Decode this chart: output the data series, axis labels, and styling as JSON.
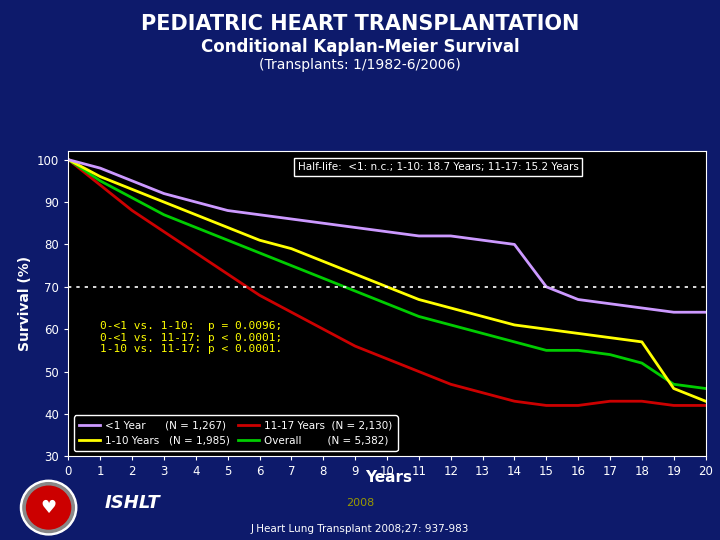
{
  "title1": "PEDIATRIC HEART TRANSPLANTATION",
  "title2": "Conditional Kaplan-Meier Survival",
  "title3": "(Transplants: 1/1982-6/2006)",
  "xlabel": "Years",
  "ylabel": "Survival (%)",
  "bg_color": "#0d1a6b",
  "plot_bg_color": "#000000",
  "xlim": [
    0,
    20
  ],
  "ylim": [
    30,
    102
  ],
  "yticks": [
    30,
    40,
    50,
    60,
    70,
    80,
    90,
    100
  ],
  "xticks": [
    0,
    1,
    2,
    3,
    4,
    5,
    6,
    7,
    8,
    9,
    10,
    11,
    12,
    13,
    14,
    15,
    16,
    17,
    18,
    19,
    20
  ],
  "halflife_text": "Half-life:  <1: n.c.; 1-10: 18.7 Years; 11-17: 15.2 Years",
  "pvalue_text": "0-<1 vs. 1-10:  p = 0.0096;\n0-<1 vs. 11-17: p < 0.0001;\n1-10 vs. 11-17: p < 0.0001.",
  "dotted_line_y": 70,
  "curves": {
    "lt1": {
      "color": "#cc99ff",
      "label": "<1 Year",
      "N": "N = 1,267",
      "x": [
        0,
        1,
        2,
        3,
        4,
        5,
        6,
        7,
        8,
        9,
        10,
        11,
        12,
        13,
        14,
        15,
        16,
        17,
        18,
        19,
        20
      ],
      "y": [
        100,
        98,
        95,
        92,
        90,
        88,
        87,
        86,
        85,
        84,
        83,
        82,
        82,
        81,
        80,
        70,
        67,
        66,
        65,
        64,
        64
      ]
    },
    "yr1_10": {
      "color": "#ffff00",
      "label": "1-10 Years",
      "N": "N = 1,985",
      "x": [
        0,
        1,
        2,
        3,
        4,
        5,
        6,
        7,
        8,
        9,
        10,
        11,
        12,
        13,
        14,
        15,
        16,
        17,
        18,
        19,
        20
      ],
      "y": [
        100,
        96,
        93,
        90,
        87,
        84,
        81,
        79,
        76,
        73,
        70,
        67,
        65,
        63,
        61,
        60,
        59,
        58,
        57,
        46,
        43
      ]
    },
    "yr11_17": {
      "color": "#cc0000",
      "label": "11-17 Years",
      "N": "N = 2,130",
      "x": [
        0,
        1,
        2,
        3,
        4,
        5,
        6,
        7,
        8,
        9,
        10,
        11,
        12,
        13,
        14,
        15,
        16,
        17,
        18,
        19,
        20
      ],
      "y": [
        100,
        94,
        88,
        83,
        78,
        73,
        68,
        64,
        60,
        56,
        53,
        50,
        47,
        45,
        43,
        42,
        42,
        43,
        43,
        42,
        42
      ]
    },
    "overall": {
      "color": "#00cc00",
      "label": "Overall",
      "N": "N = 5,382",
      "x": [
        0,
        1,
        2,
        3,
        4,
        5,
        6,
        7,
        8,
        9,
        10,
        11,
        12,
        13,
        14,
        15,
        16,
        17,
        18,
        19,
        20
      ],
      "y": [
        100,
        95,
        91,
        87,
        84,
        81,
        78,
        75,
        72,
        69,
        66,
        63,
        61,
        59,
        57,
        55,
        55,
        54,
        52,
        47,
        46
      ]
    }
  },
  "ishlt_text": "ISHLT",
  "year_text": "2008",
  "citation": "J Heart Lung Transplant 2008;27: 937-983",
  "title1_color": "#ffffff",
  "title2_color": "#ffffff",
  "title3_color": "#ffffff",
  "axis_label_color": "#ffffff",
  "tick_label_color": "#ffffff",
  "halflife_box_color": "#000000",
  "halflife_box_edge": "#ffffff",
  "halflife_text_color": "#ffffff",
  "pvalue_text_color": "#ffff00",
  "legend_bg_color": "#000000",
  "legend_edge_color": "#ffffff",
  "legend_text_color": "#ffffff",
  "year_color": "#999900",
  "citation_color": "#ffffff"
}
